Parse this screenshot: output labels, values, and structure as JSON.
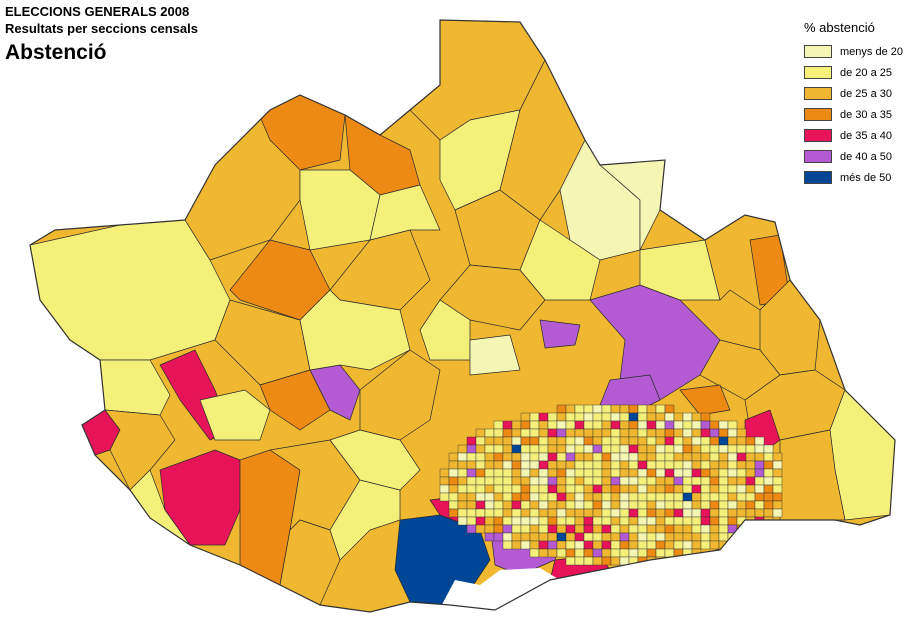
{
  "header": {
    "title": "ELECCIONS GENERALS 2008",
    "subtitle": "Resultats per seccions censals",
    "heading": "Abstenció"
  },
  "legend": {
    "title": "% abstenció",
    "items": [
      {
        "label": "menys de 20",
        "color": "#f5f5b4"
      },
      {
        "label": "de 20 a 25",
        "color": "#f5f07a"
      },
      {
        "label": "de 25 a 30",
        "color": "#f0b830"
      },
      {
        "label": "de 30 a 35",
        "color": "#ec8a14"
      },
      {
        "label": "de 35 a 40",
        "color": "#e8145a"
      },
      {
        "label": "de 40 a 50",
        "color": "#b45ad2"
      },
      {
        "label": "més de 50",
        "color": "#004696"
      }
    ]
  },
  "map": {
    "background": "#ffffff",
    "border_color": "#333333",
    "sea_color": "#ffffff"
  }
}
